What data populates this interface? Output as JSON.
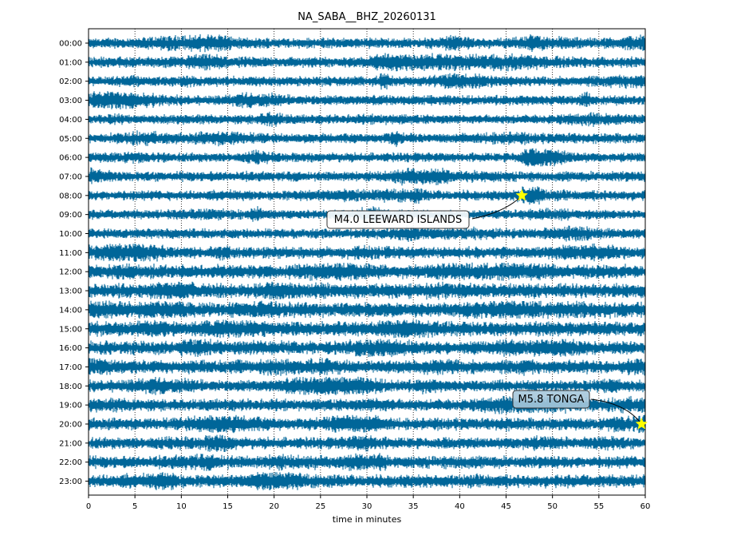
{
  "chart_data": {
    "type": "line",
    "title": "NA_SABA__BHZ_20260131",
    "xlabel": "time in minutes",
    "ylabel": "",
    "xlim": [
      0,
      60
    ],
    "x_ticks": [
      0,
      5,
      10,
      15,
      20,
      25,
      30,
      35,
      40,
      45,
      50,
      55,
      60
    ],
    "grid": "vertical dotted at x ticks",
    "trace_color": "#006699",
    "hour_labels": [
      "00:00",
      "01:00",
      "02:00",
      "03:00",
      "04:00",
      "05:00",
      "06:00",
      "07:00",
      "08:00",
      "09:00",
      "10:00",
      "11:00",
      "12:00",
      "13:00",
      "14:00",
      "15:00",
      "16:00",
      "17:00",
      "18:00",
      "19:00",
      "20:00",
      "21:00",
      "22:00",
      "23:00"
    ],
    "trace_amplitude": [
      0.45,
      0.45,
      0.4,
      0.4,
      0.35,
      0.4,
      0.35,
      0.4,
      0.4,
      0.35,
      0.4,
      0.55,
      0.75,
      0.8,
      0.85,
      0.8,
      0.7,
      0.7,
      0.55,
      0.6,
      0.6,
      0.55,
      0.6,
      0.65
    ],
    "events": [
      {
        "label": "M4.0 LEEWARD ISLANDS",
        "hour": "08:00",
        "minute": 46.7,
        "marker": "star",
        "marker_color": "#ffff00"
      },
      {
        "label": "M5.8 TONGA",
        "hour": "20:00",
        "minute": 59.6,
        "marker": "star",
        "marker_color": "#ffff00"
      }
    ]
  }
}
